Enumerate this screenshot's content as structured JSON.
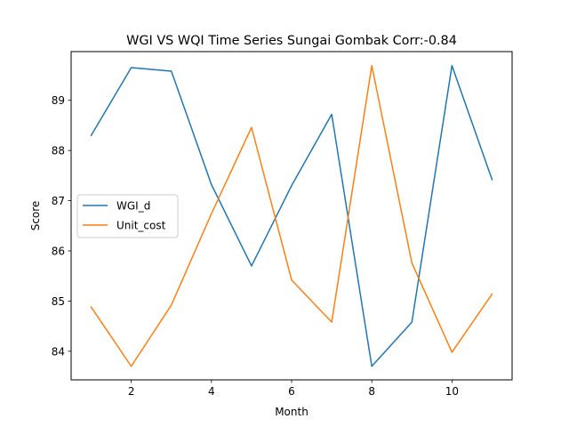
{
  "chart_data": {
    "type": "line",
    "title": "WGI VS WQI Time Series Sungai Gombak Corr:-0.84",
    "xlabel": "Month",
    "ylabel": "Score",
    "xlim": [
      0.5,
      11.5
    ],
    "ylim": [
      83.43,
      89.97
    ],
    "xticks": [
      2,
      4,
      6,
      8,
      10
    ],
    "yticks": [
      84,
      85,
      86,
      87,
      88,
      89
    ],
    "grid": false,
    "legend_position": "center-left",
    "x": [
      1,
      2,
      3,
      4,
      5,
      6,
      7,
      8,
      9,
      10,
      11
    ],
    "series": [
      {
        "name": "WGI_d",
        "color": "#1f77b4",
        "values": [
          88.3,
          89.65,
          89.58,
          87.32,
          85.7,
          87.3,
          88.72,
          83.7,
          84.58,
          89.69,
          87.42
        ]
      },
      {
        "name": "Unit_cost",
        "color": "#ff7f0e",
        "values": [
          84.88,
          83.7,
          84.92,
          86.74,
          88.46,
          85.42,
          84.58,
          89.69,
          85.76,
          83.98,
          85.14
        ]
      }
    ]
  }
}
